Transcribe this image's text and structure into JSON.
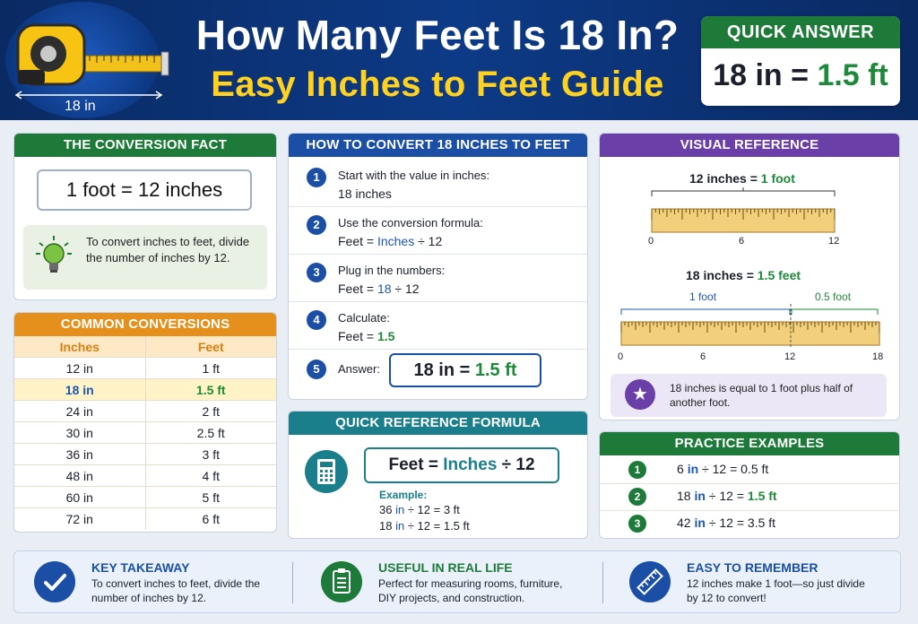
{
  "header": {
    "tape_label": "18 in",
    "title_line1": "How Many Feet Is 18 In?",
    "title_line2": "Easy Inches to Feet Guide"
  },
  "quick_answer": {
    "heading": "QUICK ANSWER",
    "lhs": "18 in",
    "eq": "=",
    "rhs": "1.5 ft"
  },
  "conversion_fact": {
    "heading": "THE CONVERSION FACT",
    "fact": "1 foot  =  12 inches",
    "tip": "To convert inches to feet, divide the number of inches by 12."
  },
  "common_conversions": {
    "heading": "COMMON CONVERSIONS",
    "col_inches": "Inches",
    "col_feet": "Feet",
    "rows": [
      {
        "in": "12 in",
        "ft": "1 ft"
      },
      {
        "in": "18 in",
        "ft": "1.5 ft"
      },
      {
        "in": "24 in",
        "ft": "2 ft"
      },
      {
        "in": "30 in",
        "ft": "2.5 ft"
      },
      {
        "in": "36 in",
        "ft": "3 ft"
      },
      {
        "in": "48 in",
        "ft": "4 ft"
      },
      {
        "in": "60 in",
        "ft": "5 ft"
      },
      {
        "in": "72 in",
        "ft": "6 ft"
      }
    ]
  },
  "how_to": {
    "heading": "HOW TO CONVERT 18 INCHES TO FEET",
    "steps": [
      {
        "num": "1",
        "label": "Start with the value in inches:",
        "value": "18 inches"
      },
      {
        "num": "2",
        "label": "Use the conversion formula:",
        "value_a": "Feet = ",
        "value_b": "Inches",
        "value_c": " ÷ 12"
      },
      {
        "num": "3",
        "label": "Plug in the numbers:",
        "value_a": "Feet = ",
        "value_b": "18",
        "value_c": " ÷ 12"
      },
      {
        "num": "4",
        "label": "Calculate:",
        "value_a": "Feet = ",
        "value_b": "1.5"
      },
      {
        "num": "5",
        "label": "Answer:"
      }
    ],
    "answer_lhs": "18 in = ",
    "answer_rhs": "1.5 ft"
  },
  "formula": {
    "heading": "QUICK REFERENCE FORMULA",
    "feet": "Feet",
    "eq": " = ",
    "inches": "Inches",
    "div": " ÷ 12",
    "example_label": "Example:",
    "ex1_a": "36 ",
    "ex1_b": "in",
    "ex1_c": " ÷ 12 = 3 ft",
    "ex2_a": "18 ",
    "ex2_b": "in",
    "ex2_c": " ÷ 12 = 1.5 ft"
  },
  "visual_reference": {
    "heading": "VISUAL REFERENCE",
    "ruler1_label_a": "12 inches = ",
    "ruler1_label_b": "1 foot",
    "ruler1_ticks": [
      "0",
      "6",
      "12"
    ],
    "ruler2_label_a": "18 inches = ",
    "ruler2_label_b": "1.5 feet",
    "seg1": "1 foot",
    "seg2": "0.5 foot",
    "ruler2_ticks": [
      "0",
      "6",
      "12",
      "18"
    ],
    "note": "18 inches is equal to 1 foot plus half of another foot."
  },
  "practice": {
    "heading": "PRACTICE EXAMPLES",
    "rows": [
      {
        "num": "1",
        "a": "6 ",
        "b": "in",
        "c": " ÷ 12 = ",
        "d": "0.5 ft"
      },
      {
        "num": "2",
        "a": "18 ",
        "b": "in",
        "c": " ÷ 12 = ",
        "d": "1.5 ft"
      },
      {
        "num": "3",
        "a": "42 ",
        "b": "in",
        "c": " ÷ 12 = ",
        "d": "3.5 ft"
      }
    ]
  },
  "footer": {
    "items": [
      {
        "title": "KEY TAKEAWAY",
        "text": "To convert inches to feet, divide the number of inches by 12."
      },
      {
        "title": "USEFUL IN REAL LIFE",
        "text": "Perfect for measuring rooms, furniture, DIY projects, and construction."
      },
      {
        "title": "EASY TO REMEMBER",
        "text": "12 inches make 1 foot—so just divide by 12 to convert!"
      }
    ]
  },
  "colors": {
    "header_bg": "#0d3a86",
    "title_yellow": "#ffd21f",
    "green": "#1d7a38",
    "blue": "#1b4fa6",
    "purple": "#6b3fa8",
    "orange": "#e5901c",
    "teal": "#1a7f8a"
  },
  "icons": [
    "tape-measure-icon",
    "lightbulb-icon",
    "calculator-icon",
    "star-icon",
    "checkmark-icon",
    "clipboard-icon",
    "ruler-icon"
  ]
}
